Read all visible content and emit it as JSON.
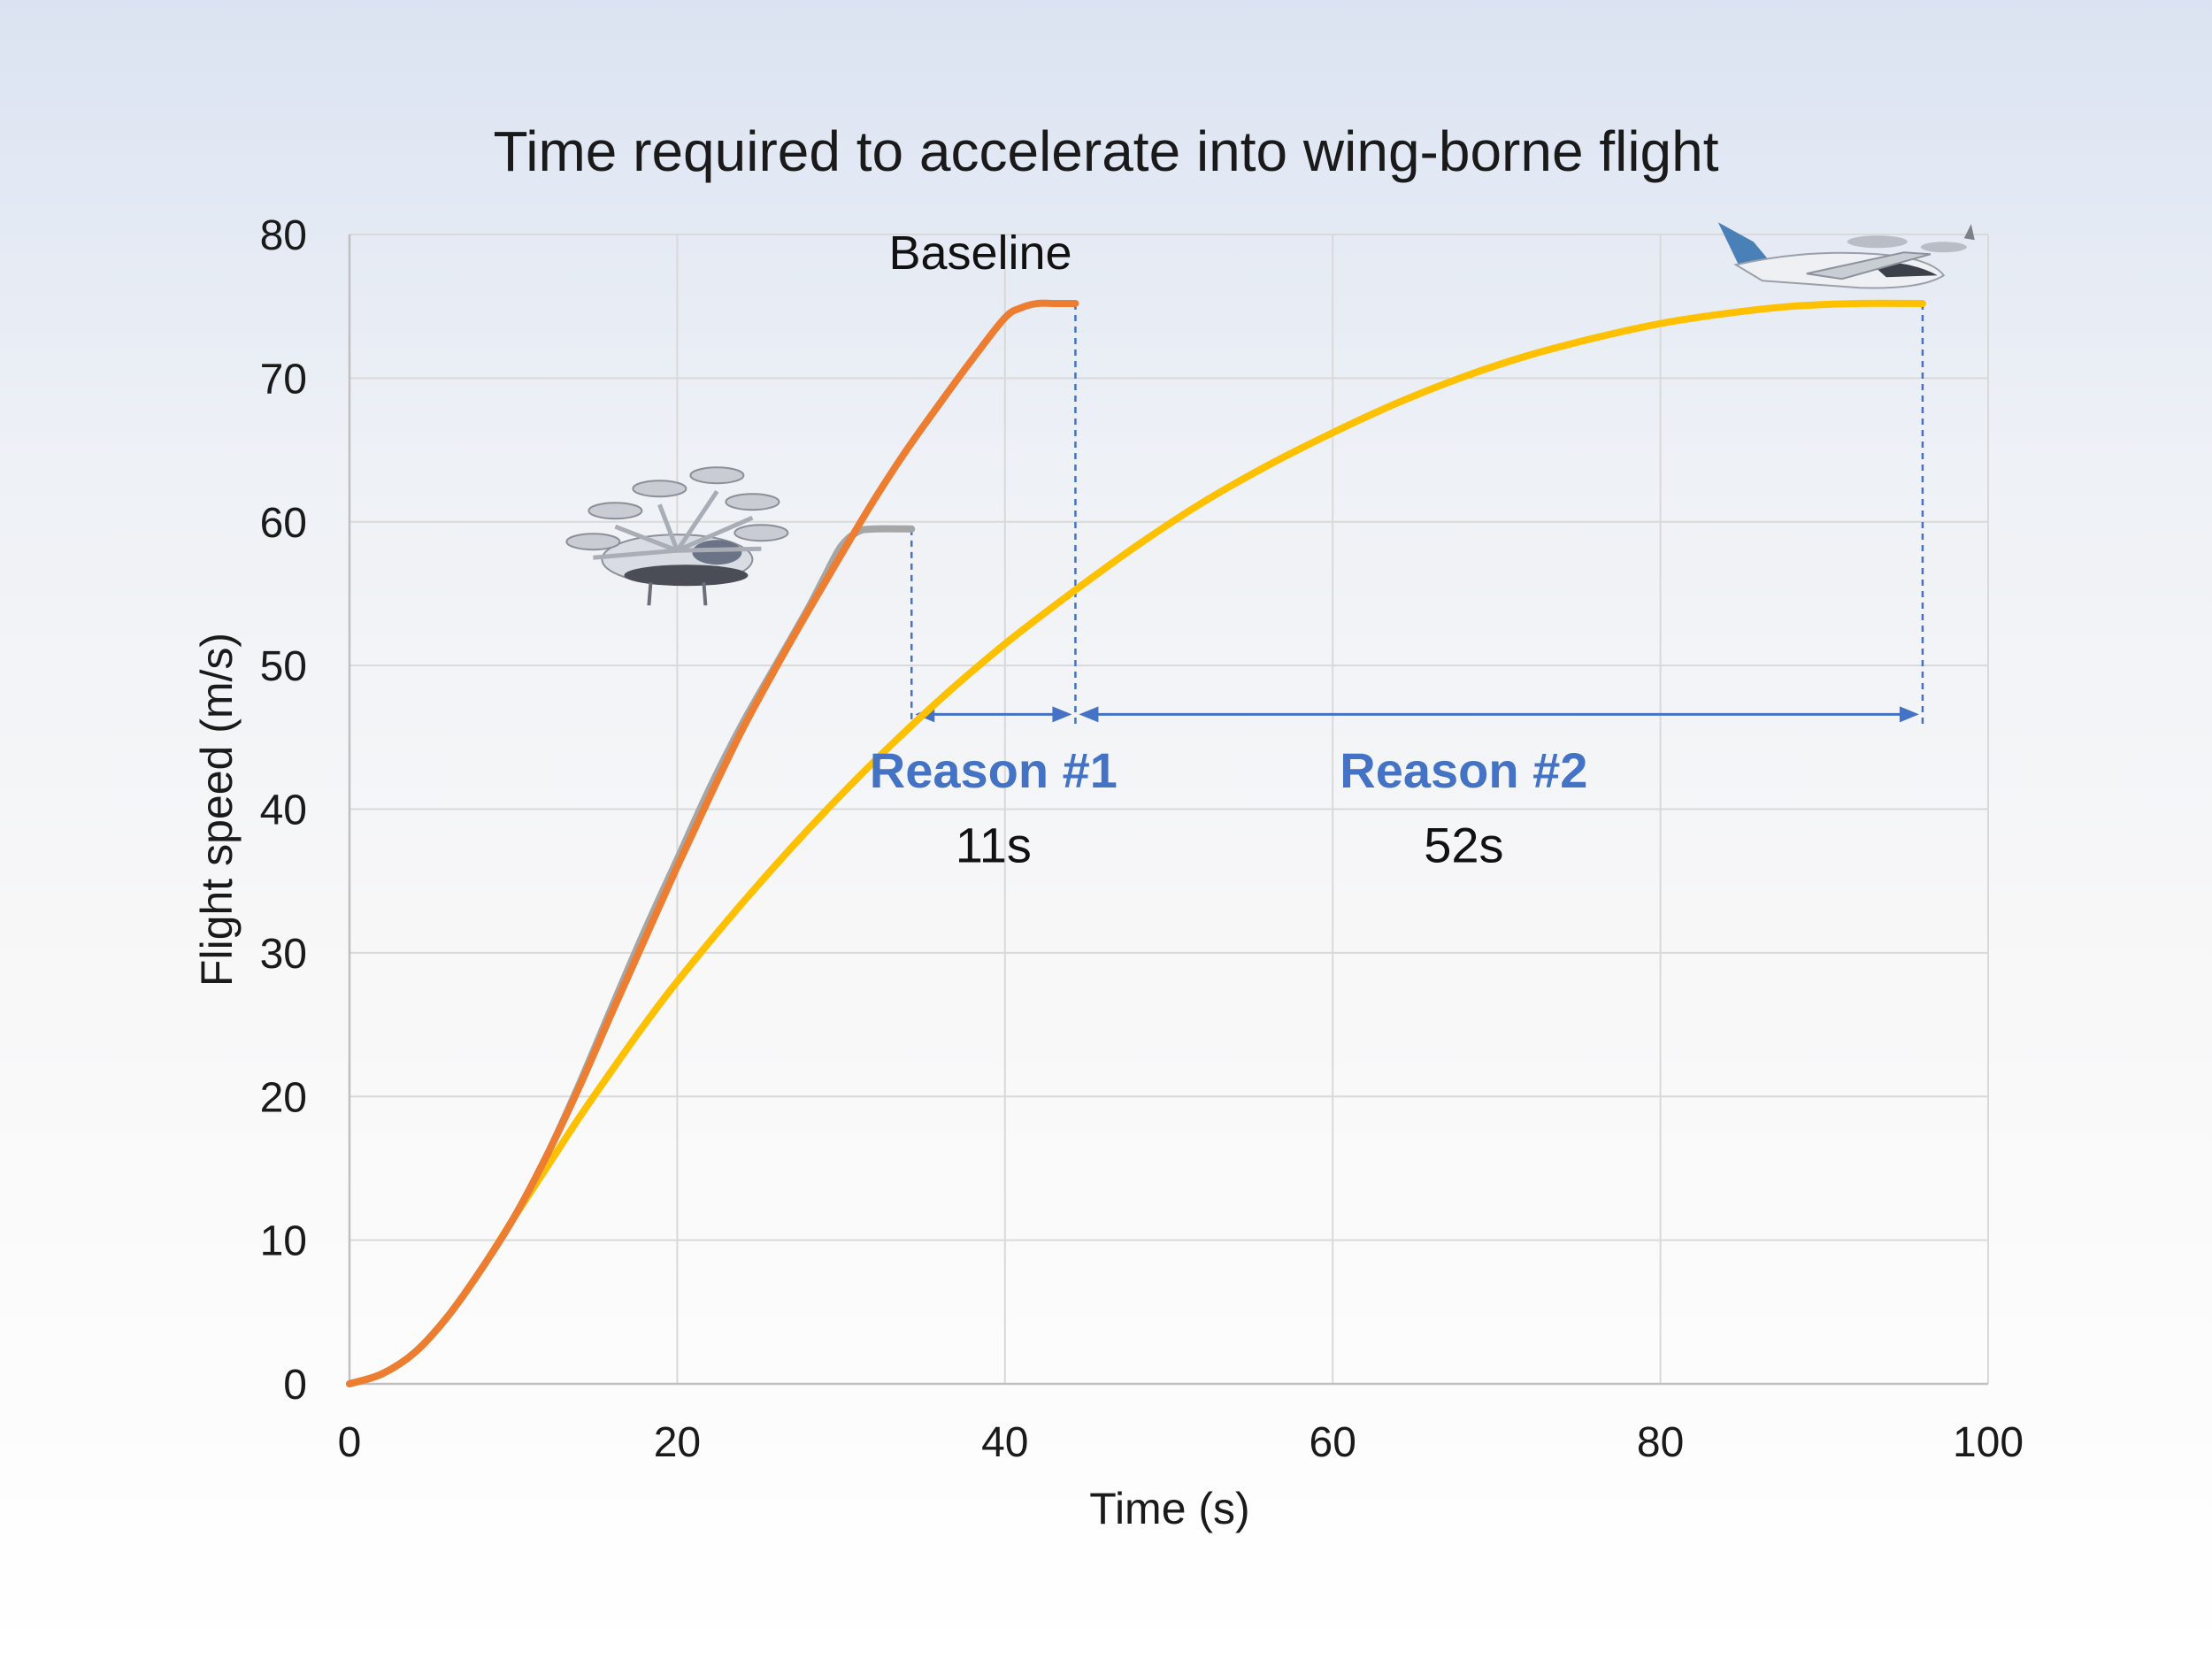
{
  "chart_data": {
    "type": "line",
    "title": "Time required to accelerate into wing-borne flight",
    "xlabel": "Time (s)",
    "ylabel": "Flight speed (m/s)",
    "xlim": [
      0,
      100
    ],
    "ylim": [
      0,
      80
    ],
    "xticks": [
      0,
      20,
      40,
      60,
      80,
      100
    ],
    "yticks": [
      0,
      10,
      20,
      30,
      40,
      50,
      60,
      70,
      80
    ],
    "grid": true,
    "series": [
      {
        "color": "#a6a6a6",
        "x": [
          0,
          2,
          4,
          6,
          8,
          10,
          12,
          14,
          16,
          18,
          20,
          22,
          24,
          26,
          28,
          29,
          30,
          31,
          32,
          34.3
        ],
        "y": [
          0,
          0.7,
          2.2,
          4.7,
          7.9,
          11.5,
          15.8,
          20.8,
          26.2,
          31.5,
          36.5,
          41.5,
          46,
          50,
          54,
          56.2,
          58.3,
          59.3,
          59.5,
          59.5
        ]
      },
      {
        "name": "Baseline",
        "color": "#ed7d31",
        "x": [
          0,
          2,
          4,
          6,
          8,
          10,
          12,
          14,
          16,
          18,
          20,
          22,
          24,
          26,
          28,
          30,
          32,
          34,
          36,
          38,
          40,
          41,
          42,
          43,
          44.3
        ],
        "y": [
          0,
          0.7,
          2.2,
          4.7,
          7.9,
          11.5,
          15.8,
          20.6,
          25.8,
          30.9,
          36,
          40.9,
          45.6,
          49.8,
          53.8,
          57.7,
          61.5,
          65,
          68.2,
          71.3,
          74.2,
          74.9,
          75.2,
          75.2,
          75.2
        ]
      },
      {
        "color": "#ffc000",
        "x": [
          0,
          2,
          4,
          6,
          8,
          10,
          12,
          14,
          16,
          18,
          20,
          24,
          28,
          32,
          36,
          40,
          44,
          48,
          52,
          56,
          60,
          64,
          68,
          72,
          76,
          80,
          84,
          88,
          92,
          96
        ],
        "y": [
          0,
          0.7,
          2.2,
          4.7,
          7.9,
          11.5,
          15,
          18.5,
          21.8,
          25,
          28,
          33.5,
          38.6,
          43.3,
          47.6,
          51.5,
          55,
          58.3,
          61.3,
          63.9,
          66.2,
          68.3,
          70.1,
          71.6,
          72.8,
          73.8,
          74.5,
          75,
          75.2,
          75.2
        ]
      }
    ],
    "annotations": [
      {
        "text": "Reason #1",
        "color": "#4472c4",
        "x": 39.3,
        "y": 41.5
      },
      {
        "text": "11s",
        "x": 39.3,
        "y": 36.3
      },
      {
        "text": "Reason #2",
        "color": "#4472c4",
        "x": 68,
        "y": 41.5
      },
      {
        "text": "52s",
        "x": 68,
        "y": 36.3
      }
    ],
    "markers": {
      "dashed_lines": [
        {
          "x": 34.3,
          "y_top": 59.5,
          "y_bottom": 45.6
        },
        {
          "x": 44.3,
          "y_top": 75.2,
          "y_bottom": 45.6
        },
        {
          "x": 96,
          "y_top": 75.2,
          "y_bottom": 45.6
        }
      ],
      "double_arrows": [
        {
          "x_from": 34.3,
          "x_to": 44.3,
          "y": 46.6
        },
        {
          "x_from": 44.3,
          "x_to": 96,
          "y": 46.6
        }
      ],
      "color": "#4472c4"
    },
    "images": [
      {
        "name": "multicopter-evtol-image",
        "x": 20,
        "y": 58
      },
      {
        "name": "fixed-wing-evtol-image",
        "x": 90,
        "y": 79
      }
    ]
  }
}
